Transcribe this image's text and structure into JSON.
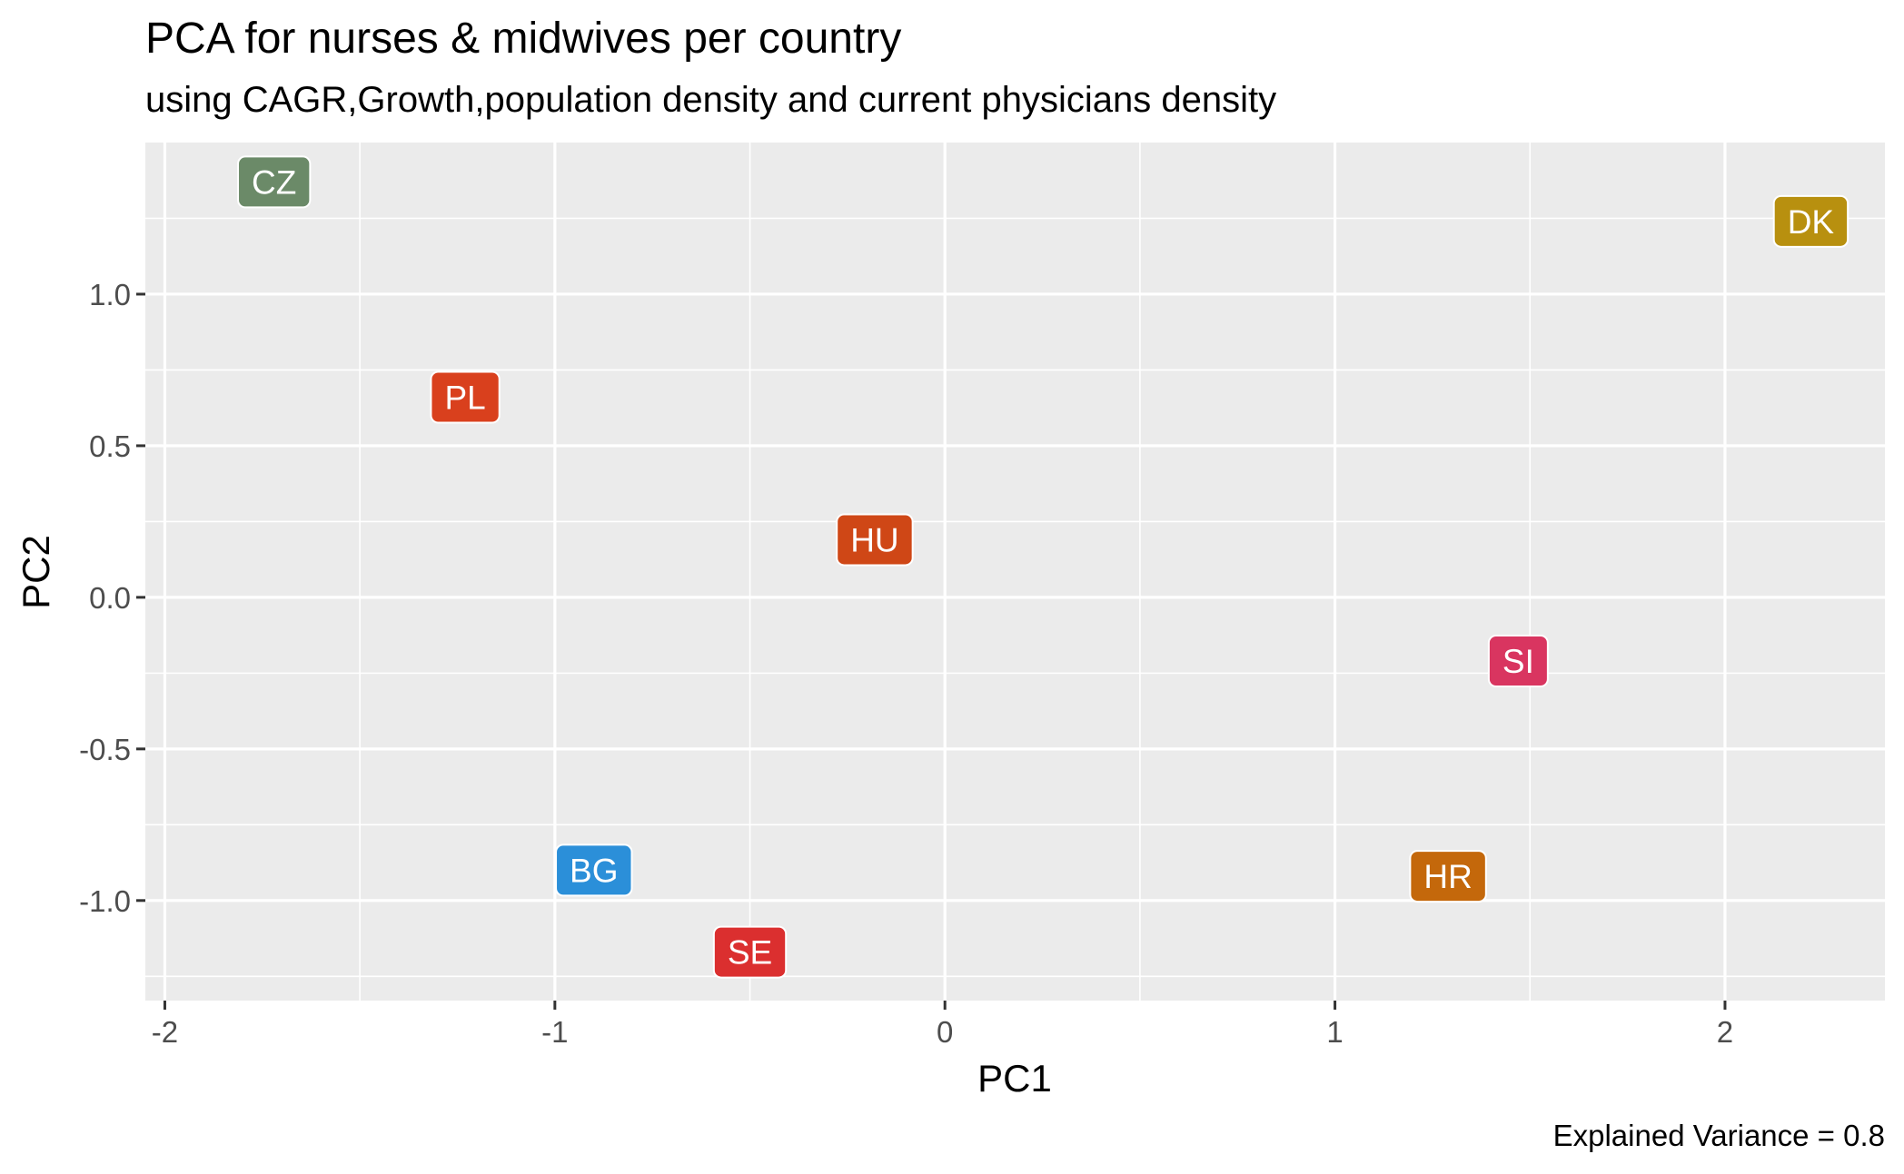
{
  "chart_data": {
    "type": "scatter",
    "title": "PCA for  nurses & midwives per country",
    "subtitle": "using CAGR,Growth,population density and current physicians density",
    "xlabel": "PC1",
    "ylabel": "PC2",
    "caption": "Explained Variance = 0.8",
    "xlim": [
      -2.05,
      2.41
    ],
    "ylim": [
      -1.33,
      1.5
    ],
    "x_ticks": [
      -2,
      -1,
      0,
      1,
      2
    ],
    "x_tick_labels": [
      "-2",
      "-1",
      "0",
      "1",
      "2"
    ],
    "y_ticks": [
      -1.0,
      -0.5,
      0.0,
      0.5,
      1.0
    ],
    "y_tick_labels": [
      "-1.0",
      "-0.5",
      "0.0",
      "0.5",
      "1.0"
    ],
    "grid": true,
    "legend": "none",
    "panel_background": "#ebebeb",
    "grid_color": "#ffffff",
    "points": [
      {
        "label": "CZ",
        "x": -1.72,
        "y": 1.37,
        "color": "#6b8a68"
      },
      {
        "label": "DK",
        "x": 2.22,
        "y": 1.24,
        "color": "#b8900f"
      },
      {
        "label": "PL",
        "x": -1.23,
        "y": 0.66,
        "color": "#d9401d"
      },
      {
        "label": "HU",
        "x": -0.18,
        "y": 0.19,
        "color": "#cf4716"
      },
      {
        "label": "SI",
        "x": 1.47,
        "y": -0.21,
        "color": "#d93560"
      },
      {
        "label": "BG",
        "x": -0.9,
        "y": -0.9,
        "color": "#2b8fd9"
      },
      {
        "label": "HR",
        "x": 1.29,
        "y": -0.92,
        "color": "#c4680b"
      },
      {
        "label": "SE",
        "x": -0.5,
        "y": -1.17,
        "color": "#db2f2f"
      }
    ]
  }
}
